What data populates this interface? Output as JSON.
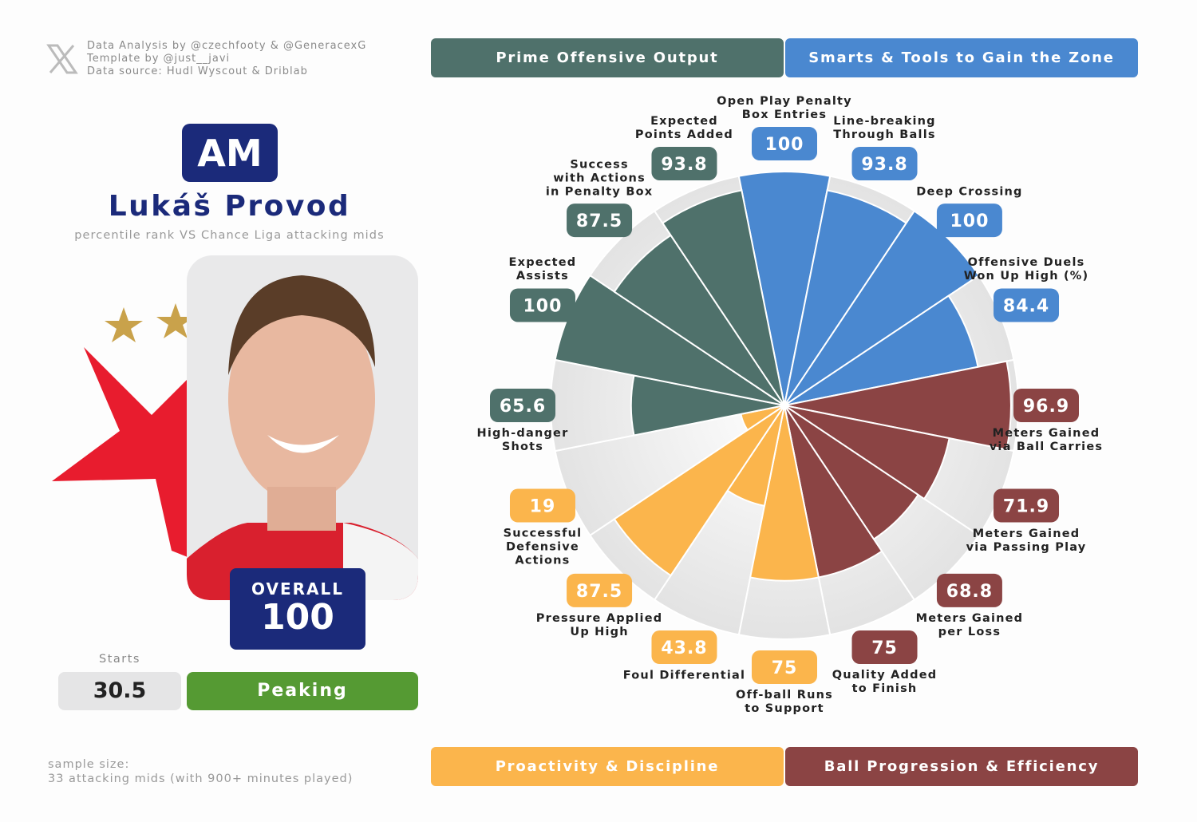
{
  "header": {
    "credits": [
      "Data Analysis by @czechfooty & @GeneracexG",
      "Template by @just__javi",
      "Data source: Hudl Wyscout & Driblab"
    ]
  },
  "player": {
    "position": "AM",
    "name": "Lukáš Provod",
    "subtitle": "percentile rank VS Chance Liga attacking mids",
    "overall_label": "OVERALL",
    "overall": 100,
    "starts_label": "Starts",
    "starts": 30.5,
    "form": "Peaking"
  },
  "footer": {
    "sample": [
      "sample size:",
      "33 attacking mids (with 900+ minutes played)"
    ]
  },
  "chart_data": {
    "type": "pizza",
    "categories": [
      "Open Play Penalty\nBox Entries",
      "Line-breaking\nThrough Balls",
      "Deep Crossing",
      "Offensive Duels\nWon Up High (%)",
      "Meters Gained\nvia Ball Carries",
      "Meters Gained\nvia Passing Play",
      "Meters Gained\nper Loss",
      "Quality Added\nto Finish",
      "Off-ball Runs\nto Support",
      "Foul Differential",
      "Pressure Applied\nUp High",
      "Successful\nDefensive\nActions",
      "High-danger\nShots",
      "Expected\nAssists",
      "Success\nwith Actions\nin Penalty Box",
      "Expected\nPoints Added"
    ],
    "values": [
      100,
      93.8,
      100,
      84.4,
      96.9,
      71.9,
      68.8,
      75,
      75,
      43.8,
      87.5,
      19,
      65.6,
      100,
      87.5,
      93.8
    ],
    "colors": [
      "#4a88d0",
      "#4a88d0",
      "#4a88d0",
      "#4a88d0",
      "#8b4444",
      "#8b4444",
      "#8b4444",
      "#8b4444",
      "#fbb54c",
      "#fbb54c",
      "#fbb54c",
      "#fbb54c",
      "#4f716b",
      "#4f716b",
      "#4f716b",
      "#4f716b"
    ],
    "groups": [
      {
        "name": "Prime Offensive Output",
        "color": "#4f716b"
      },
      {
        "name": "Smarts & Tools to Gain the Zone",
        "color": "#4a88d0"
      },
      {
        "name": "Proactivity & Discipline",
        "color": "#fbb54c"
      },
      {
        "name": "Ball Progression & Efficiency",
        "color": "#8b4444"
      }
    ],
    "rlim": [
      0,
      100
    ]
  }
}
